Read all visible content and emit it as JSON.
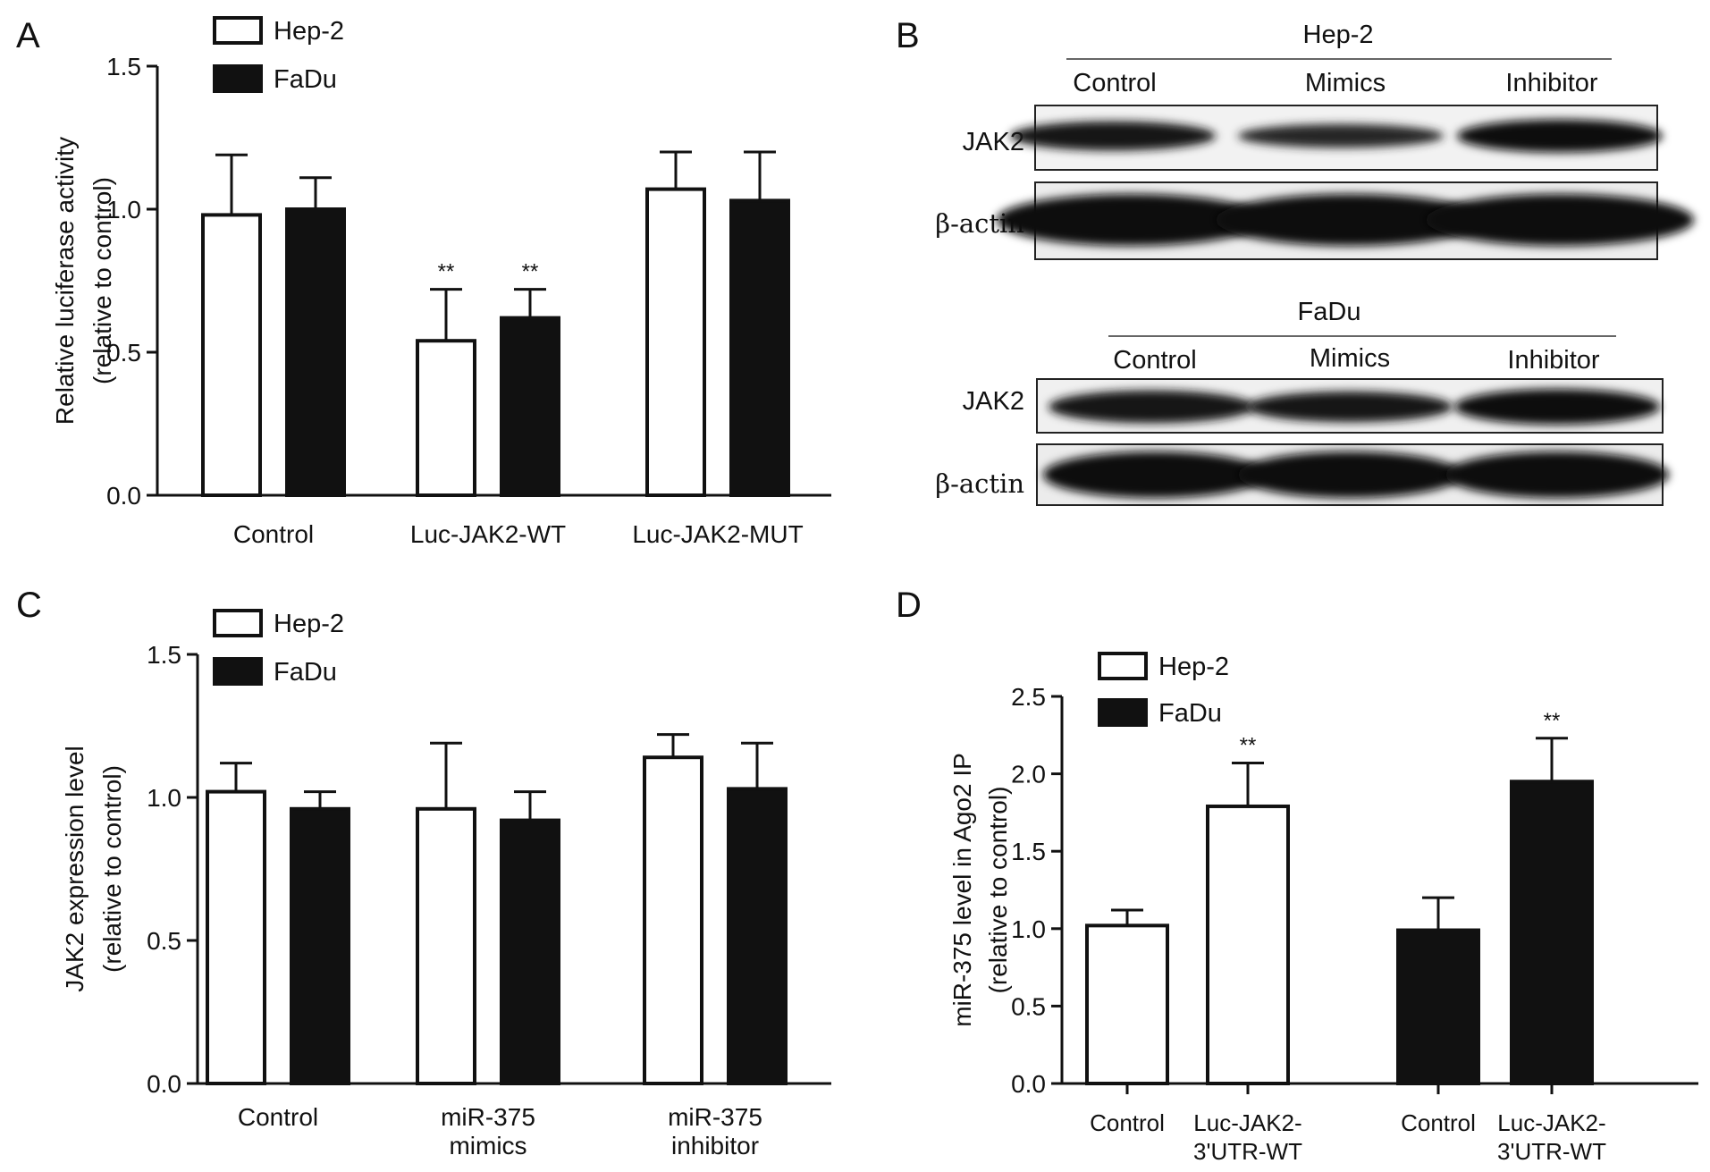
{
  "panels": {
    "A": "A",
    "B": "B",
    "C": "C",
    "D": "D"
  },
  "legend_colors": {
    "Hep-2": "#ffffff",
    "FaDu": "#111111"
  },
  "chart_data": [
    {
      "panel": "A",
      "type": "bar",
      "ylabel_lines": [
        "Relative  luciferase activity",
        "(relative to control)"
      ],
      "xlabel": "",
      "categories": [
        [
          "Control"
        ],
        [
          "Luc-JAK2-WT"
        ],
        [
          "Luc-JAK2-MUT"
        ]
      ],
      "series": [
        {
          "name": "Hep-2",
          "values": [
            0.98,
            0.54,
            1.07
          ],
          "errors": [
            0.21,
            0.18,
            0.13
          ]
        },
        {
          "name": "FaDu",
          "values": [
            1.0,
            0.62,
            1.03
          ],
          "errors": [
            0.11,
            0.1,
            0.17
          ]
        }
      ],
      "annotations": [
        [
          "",
          ""
        ],
        [
          "**",
          "**"
        ],
        [
          "",
          ""
        ]
      ],
      "ylim": [
        0,
        1.5
      ],
      "yticks": [
        "0.0",
        "0.5",
        "1.0",
        "1.5"
      ],
      "legend_position": "top-left",
      "grid": false
    },
    {
      "panel": "C",
      "type": "bar",
      "ylabel_lines": [
        "JAK2 expression level",
        "(relative  to control)"
      ],
      "xlabel": "",
      "categories": [
        [
          "Control"
        ],
        [
          "miR-375",
          "mimics"
        ],
        [
          "miR-375",
          "inhibitor"
        ]
      ],
      "series": [
        {
          "name": "Hep-2",
          "values": [
            1.02,
            0.96,
            1.14
          ],
          "errors": [
            0.1,
            0.23,
            0.08
          ]
        },
        {
          "name": "FaDu",
          "values": [
            0.96,
            0.92,
            1.03
          ],
          "errors": [
            0.06,
            0.1,
            0.16
          ]
        }
      ],
      "annotations": [
        [
          "",
          ""
        ],
        [
          "",
          ""
        ],
        [
          "",
          ""
        ]
      ],
      "ylim": [
        0,
        1.5
      ],
      "yticks": [
        "0.0",
        "0.5",
        "1.0",
        "1.5"
      ],
      "legend_position": "top-left",
      "grid": false
    },
    {
      "panel": "D",
      "type": "bar",
      "ylabel_lines": [
        "miR-375 level in Ago2 IP",
        "(relative to control)"
      ],
      "xlabel": "",
      "categories": [
        [
          "Control"
        ],
        [
          "Luc-JAK2-",
          "3'UTR-WT"
        ],
        [
          "Control"
        ],
        [
          "Luc-JAK2-",
          "3'UTR-WT"
        ]
      ],
      "series": [
        {
          "name": "Hep-2",
          "values": [
            1.02,
            1.79,
            null,
            null
          ],
          "errors": [
            0.1,
            0.28,
            null,
            null
          ]
        },
        {
          "name": "FaDu",
          "values": [
            null,
            null,
            0.99,
            1.95
          ],
          "errors": [
            null,
            null,
            0.21,
            0.28
          ]
        }
      ],
      "annotations": [
        "",
        "**",
        "",
        "**"
      ],
      "ylim": [
        0,
        2.5
      ],
      "yticks": [
        "0.0",
        "0.5",
        "1.0",
        "1.5",
        "2.0",
        "2.5"
      ],
      "legend_position": "top-left",
      "grid": false
    }
  ],
  "blots": [
    {
      "cell_line": "Hep-2",
      "lanes": [
        "Control",
        "Mimics",
        "Inhibitor"
      ],
      "rows": [
        "JAK2",
        "β-actin"
      ],
      "band_intensity": {
        "JAK2": [
          0.75,
          0.45,
          0.95
        ],
        "β-actin": [
          1.0,
          1.0,
          1.0
        ]
      }
    },
    {
      "cell_line": "FaDu",
      "lanes": [
        "Control",
        "Mimics",
        "Inhibitor"
      ],
      "rows": [
        "JAK2",
        "β-actin"
      ],
      "band_intensity": {
        "JAK2": [
          0.85,
          0.75,
          1.0
        ],
        "β-actin": [
          1.0,
          1.0,
          1.0
        ]
      }
    }
  ]
}
